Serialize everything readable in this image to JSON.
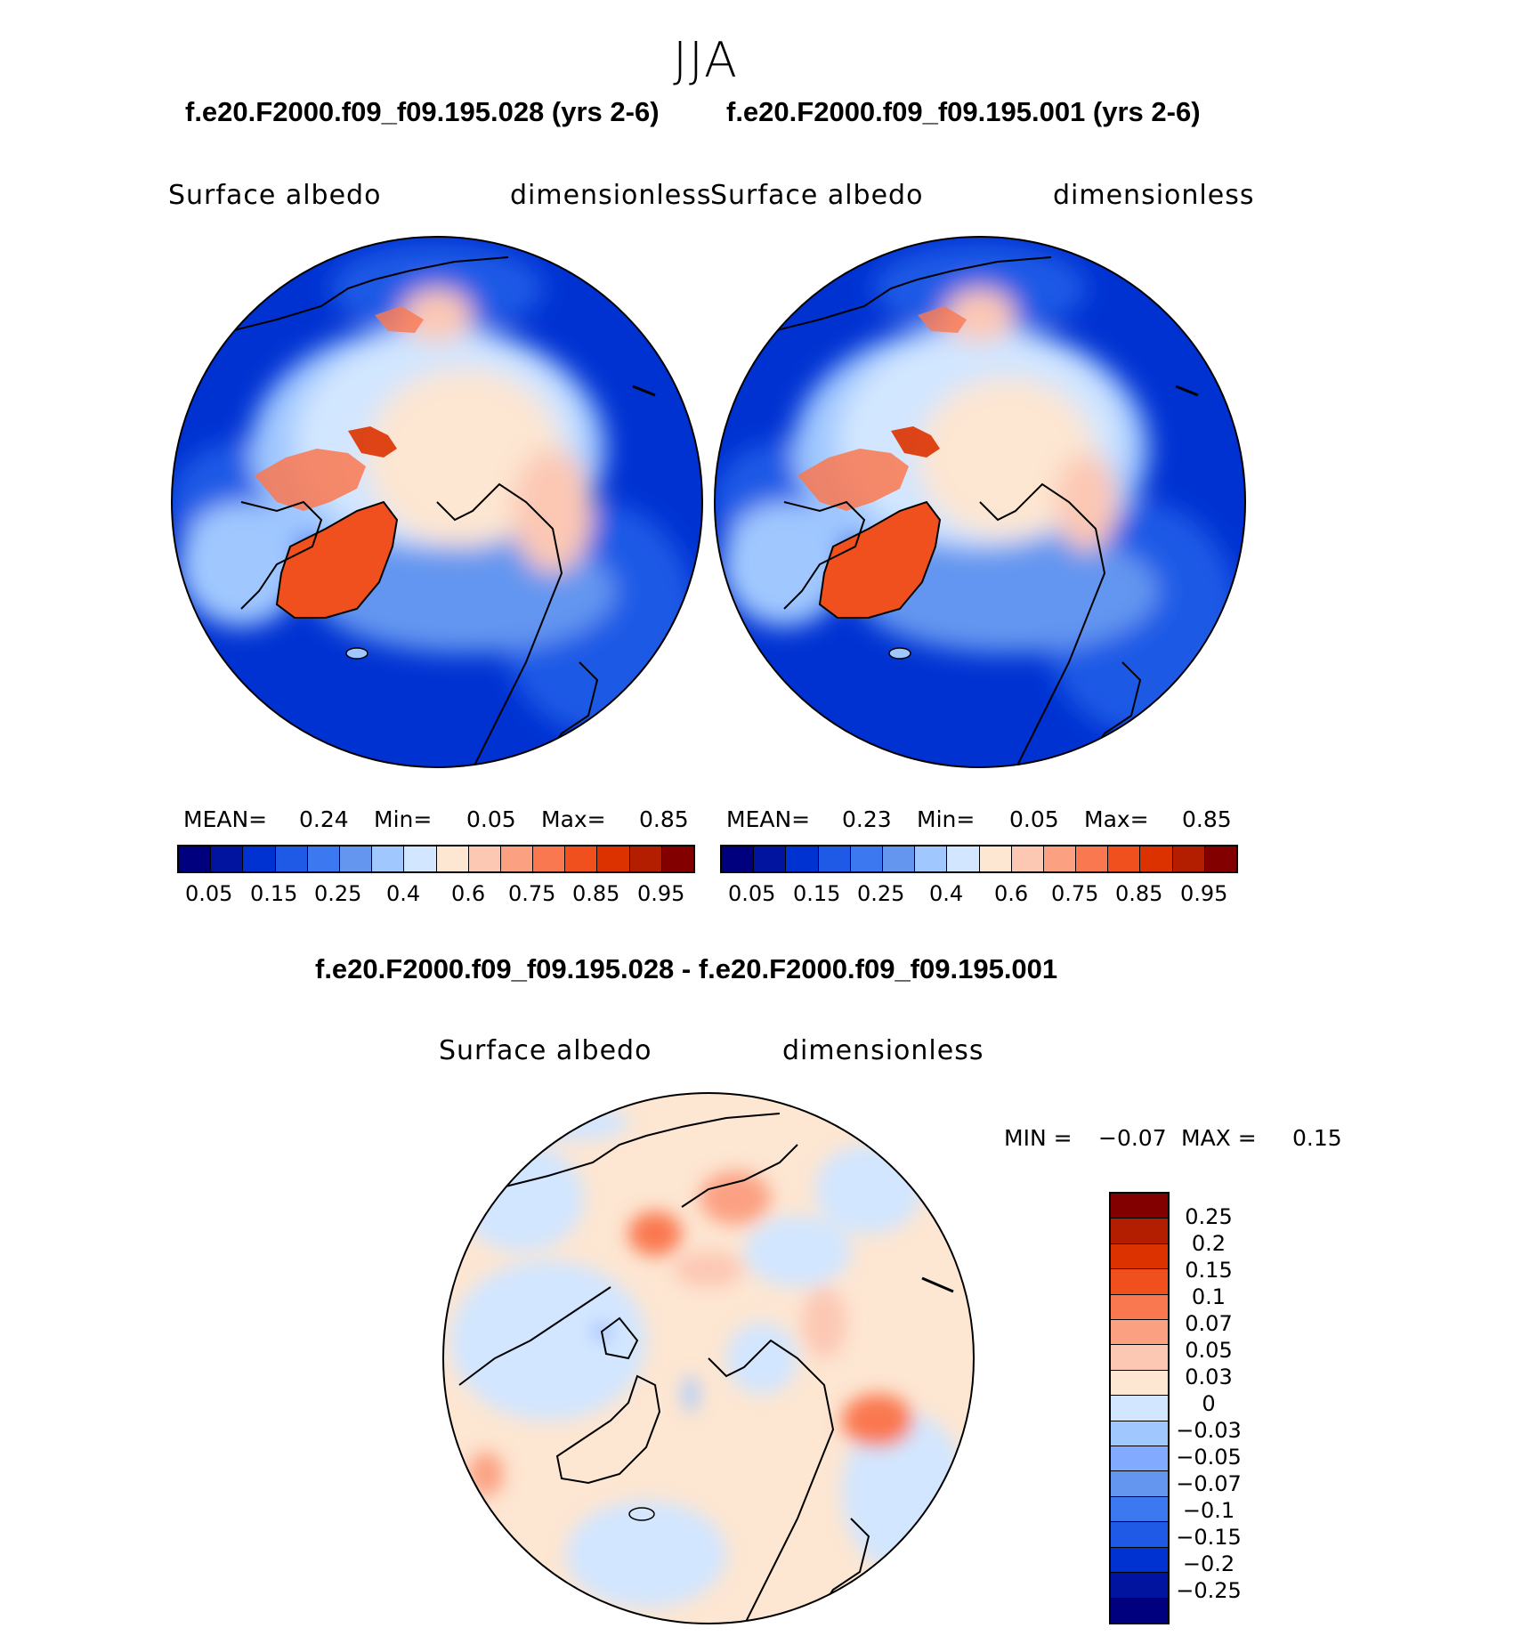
{
  "season": "JJA",
  "panels": [
    {
      "case_title": "f.e20.F2000.f09_f09.195.028 (yrs 2-6)",
      "variable": "Surface albedo",
      "units": "dimensionless",
      "stats": {
        "mean_label": "MEAN=",
        "mean": "0.24",
        "min_label": "Min=",
        "min": "0.05",
        "max_label": "Max=",
        "max": "0.85"
      }
    },
    {
      "case_title": "f.e20.F2000.f09_f09.195.001 (yrs 2-6)",
      "variable": "Surface albedo",
      "units": "dimensionless",
      "stats": {
        "mean_label": "MEAN=",
        "mean": "0.23",
        "min_label": "Min=",
        "min": "0.05",
        "max_label": "Max=",
        "max": "0.85"
      }
    }
  ],
  "colorbar": {
    "colors": [
      "#00007f",
      "#0014a0",
      "#0032d2",
      "#1e5ae6",
      "#3c78f0",
      "#6496f0",
      "#a0c8ff",
      "#d2e6ff",
      "#fde6d2",
      "#fcc8b4",
      "#fca082",
      "#fa7850",
      "#f0501e",
      "#dc3200",
      "#b41e00",
      "#820000"
    ],
    "tick_labels": [
      "0.05",
      "0.15",
      "0.25",
      "0.4",
      "0.6",
      "0.75",
      "0.85",
      "0.95"
    ]
  },
  "difference": {
    "title": "f.e20.F2000.f09_f09.195.028 - f.e20.F2000.f09_f09.195.001",
    "variable": "Surface albedo",
    "units": "dimensionless",
    "stats": {
      "min_label": "MIN =",
      "min": "−0.07",
      "max_label": "MAX =",
      "max": "0.15"
    },
    "colorbar": {
      "colors": [
        "#820000",
        "#b41e00",
        "#dc3200",
        "#f0501e",
        "#fa7850",
        "#fca082",
        "#fcc8b4",
        "#fde6d2",
        "#d2e6ff",
        "#a0c8ff",
        "#82aaff",
        "#6496f0",
        "#3c78f0",
        "#1e5ae6",
        "#0032d2",
        "#0014a0",
        "#00007f"
      ],
      "tick_labels": [
        "0.25",
        "0.2",
        "0.15",
        "0.1",
        "0.07",
        "0.05",
        "0.03",
        "0",
        "−0.03",
        "−0.05",
        "−0.07",
        "−0.1",
        "−0.15",
        "−0.2",
        "−0.25"
      ]
    }
  }
}
